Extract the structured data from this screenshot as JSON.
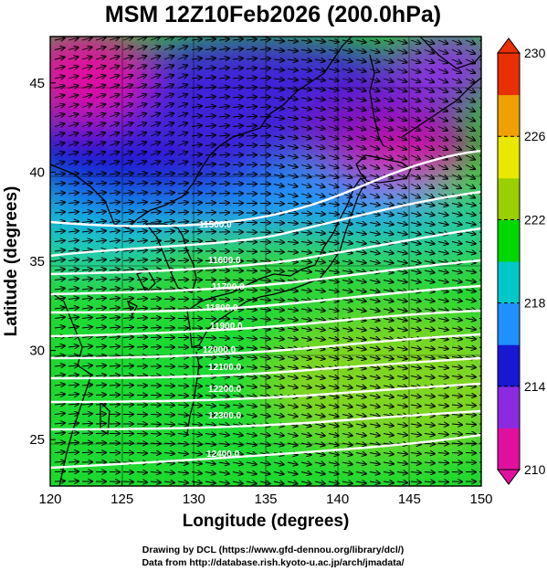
{
  "title": "MSM 12Z10Feb2026 (200.0hPa)",
  "x_axis_label": "Longitude (degrees)",
  "y_axis_label": "Latitude  (degrees)",
  "credits": [
    "Drawing by DCL (https://www.gfd-dennou.org/library/dcl/)",
    "Data from http://database.rish.kyoto-u.ac.jp/arch/jmadata/"
  ],
  "map": {
    "lon_range": [
      120,
      150
    ],
    "lat_range": [
      22.4,
      47.6
    ],
    "lon_ticks": [
      "120",
      "125",
      "130",
      "135",
      "140",
      "145",
      "150"
    ],
    "lat_ticks": [
      "25",
      "30",
      "35",
      "40",
      "45"
    ],
    "lon_tick_values": [
      120,
      125,
      130,
      135,
      140,
      145,
      150
    ],
    "lat_tick_values": [
      25,
      30,
      35,
      40,
      45
    ]
  },
  "colorbar": {
    "range": [
      210,
      230
    ],
    "ticks": [
      "230",
      "226",
      "222",
      "218",
      "214",
      "210"
    ],
    "tick_values": [
      230,
      226,
      222,
      218,
      214,
      210
    ],
    "colors": [
      "#e0109e",
      "#8a2be2",
      "#1818d0",
      "#1e90ff",
      "#00c8c8",
      "#00d800",
      "#9ad000",
      "#e8e800",
      "#f0a000",
      "#e83000"
    ]
  },
  "contours": {
    "labels": [
      "11500.0",
      "11600.0",
      "11700.0",
      "11800.0",
      "11900.0",
      "12000.0",
      "12100.0",
      "12200.0",
      "12300.0",
      "12400.0"
    ]
  },
  "colors": {
    "contour": "#ffffff",
    "vector": "#000000",
    "coast": "#000000"
  }
}
